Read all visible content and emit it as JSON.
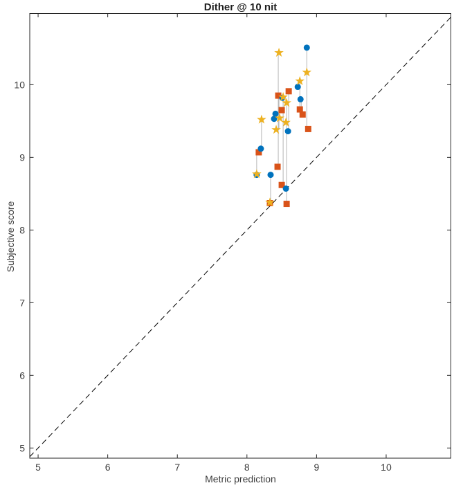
{
  "figure": {
    "background": "#ffffff"
  },
  "chart_data": {
    "type": "scatter",
    "title": "Dither @ 10 nit",
    "xlabel": "Metric prediction",
    "ylabel": "Subjective score",
    "xlim": [
      4.88,
      10.93
    ],
    "ylim": [
      4.86,
      10.98
    ],
    "x_ticks": [
      5,
      6,
      7,
      8,
      9,
      10
    ],
    "y_ticks": [
      5,
      6,
      7,
      8,
      9,
      10
    ],
    "grid": false,
    "legend": "none",
    "identity_line": {
      "show": true,
      "style": "dashed",
      "color": "#000000",
      "from": 4.88,
      "to": 10.93
    },
    "series": [
      {
        "name": "series-circle",
        "marker": "circle",
        "color": "#0072BD",
        "points": [
          [
            8.86,
            10.51
          ],
          [
            8.73,
            9.97
          ],
          [
            8.77,
            9.8
          ],
          [
            8.51,
            9.82
          ],
          [
            8.41,
            9.6
          ],
          [
            8.39,
            9.53
          ],
          [
            8.59,
            9.36
          ],
          [
            8.2,
            9.12
          ],
          [
            8.14,
            8.76
          ],
          [
            8.34,
            8.76
          ],
          [
            8.56,
            8.57
          ]
        ]
      },
      {
        "name": "series-square",
        "marker": "square",
        "color": "#D95319",
        "points": [
          [
            8.6,
            9.91
          ],
          [
            8.45,
            9.85
          ],
          [
            8.5,
            9.65
          ],
          [
            8.76,
            9.66
          ],
          [
            8.8,
            9.59
          ],
          [
            8.88,
            9.39
          ],
          [
            8.17,
            9.07
          ],
          [
            8.44,
            8.87
          ],
          [
            8.5,
            8.62
          ],
          [
            8.33,
            8.37
          ],
          [
            8.57,
            8.36
          ]
        ]
      },
      {
        "name": "series-star",
        "marker": "star",
        "color": "#EDB120",
        "points": [
          [
            8.46,
            10.44
          ],
          [
            8.86,
            10.17
          ],
          [
            8.76,
            10.05
          ],
          [
            8.52,
            9.83
          ],
          [
            8.57,
            9.75
          ],
          [
            8.47,
            9.54
          ],
          [
            8.21,
            9.52
          ],
          [
            8.56,
            9.48
          ],
          [
            8.42,
            9.38
          ],
          [
            8.14,
            8.77
          ],
          [
            8.33,
            8.38
          ]
        ]
      }
    ],
    "connectors": [
      {
        "x": 8.86,
        "y_top": 10.51,
        "y_bottom": 9.39
      },
      {
        "x": 8.76,
        "y_top": 10.05,
        "y_bottom": 9.66
      },
      {
        "x": 8.78,
        "y_top": 9.8,
        "y_bottom": 9.59
      },
      {
        "x": 8.45,
        "y_top": 10.44,
        "y_bottom": 8.87
      },
      {
        "x": 8.46,
        "y_top": 9.85,
        "y_bottom": 9.38
      },
      {
        "x": 8.52,
        "y_top": 9.83,
        "y_bottom": 8.62
      },
      {
        "x": 8.57,
        "y_top": 9.75,
        "y_bottom": 8.36
      },
      {
        "x": 8.6,
        "y_top": 9.91,
        "y_bottom": 9.36
      },
      {
        "x": 8.21,
        "y_top": 9.52,
        "y_bottom": 9.07
      },
      {
        "x": 8.14,
        "y_top": 9.07,
        "y_bottom": 8.76
      },
      {
        "x": 8.34,
        "y_top": 8.76,
        "y_bottom": 8.37
      }
    ],
    "colors": {
      "axis": "#262626",
      "tick_label": "#3d3d3d",
      "connector": "#b5b5b5",
      "identity_line": "#000000"
    }
  }
}
